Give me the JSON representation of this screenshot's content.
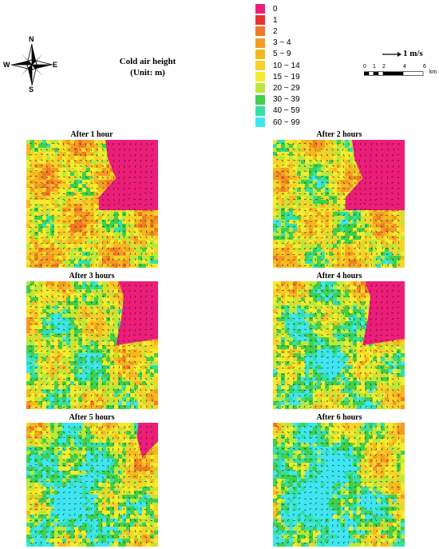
{
  "compass": {
    "n": "N",
    "s": "S",
    "e": "E",
    "w": "W"
  },
  "header": {
    "title": "Cold air height",
    "unit": "(Unit: m)"
  },
  "vector_scale": {
    "label": "1 m/s"
  },
  "scale_bar": {
    "ticks": [
      "0",
      "1",
      "2",
      "4",
      "6"
    ],
    "unit": "km"
  },
  "legend": [
    {
      "label": "0",
      "color": "#ec1e79"
    },
    {
      "label": "1",
      "color": "#e8352b"
    },
    {
      "label": "2",
      "color": "#f07a25"
    },
    {
      "label": "3 ~ 4",
      "color": "#f59a24"
    },
    {
      "label": "5 ~ 9",
      "color": "#f6b81f"
    },
    {
      "label": "10 ~ 14",
      "color": "#f7d22a"
    },
    {
      "label": "15 ~ 19",
      "color": "#f2ec2e"
    },
    {
      "label": "20 ~ 29",
      "color": "#bce83a"
    },
    {
      "label": "30 ~ 39",
      "color": "#3fd04c"
    },
    {
      "label": "40 ~ 59",
      "color": "#35e0a6"
    },
    {
      "label": "60 ~ 99",
      "color": "#3fe6f2"
    }
  ],
  "maps": [
    {
      "title": "After 1 hour",
      "pink_coverage": "large"
    },
    {
      "title": "After 2 hours",
      "pink_coverage": "large"
    },
    {
      "title": "After 3 hours",
      "pink_coverage": "medium"
    },
    {
      "title": "After 4 hours",
      "pink_coverage": "medium"
    },
    {
      "title": "After 5 hours",
      "pink_coverage": "small"
    },
    {
      "title": "After 6 hours",
      "pink_coverage": "none"
    }
  ]
}
